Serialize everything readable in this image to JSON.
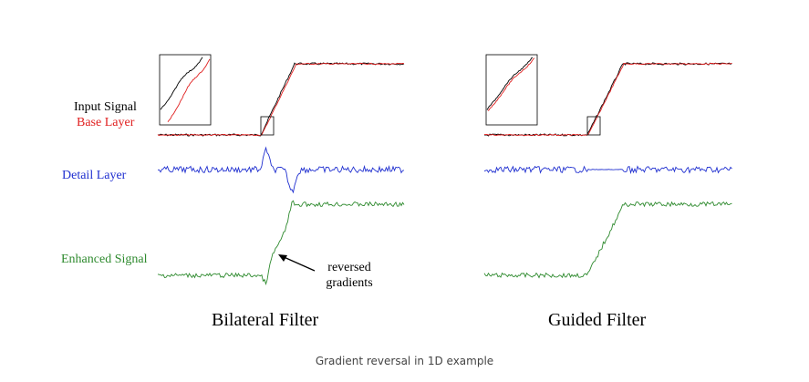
{
  "labels": {
    "input_signal": "Input Signal",
    "base_layer": "Base Layer",
    "detail_layer": "Detail Layer",
    "enhanced_signal": "Enhanced Signal"
  },
  "panels": {
    "bilateral_title": "Bilateral Filter",
    "guided_title": "Guided Filter"
  },
  "annotation": {
    "line1": "reversed",
    "line2": "gradients"
  },
  "caption": "Gradient reversal in 1D example",
  "colors": {
    "input": "#000000",
    "base": "#e02020",
    "detail": "#2030d0",
    "enhanced": "#2e8a2e"
  }
}
